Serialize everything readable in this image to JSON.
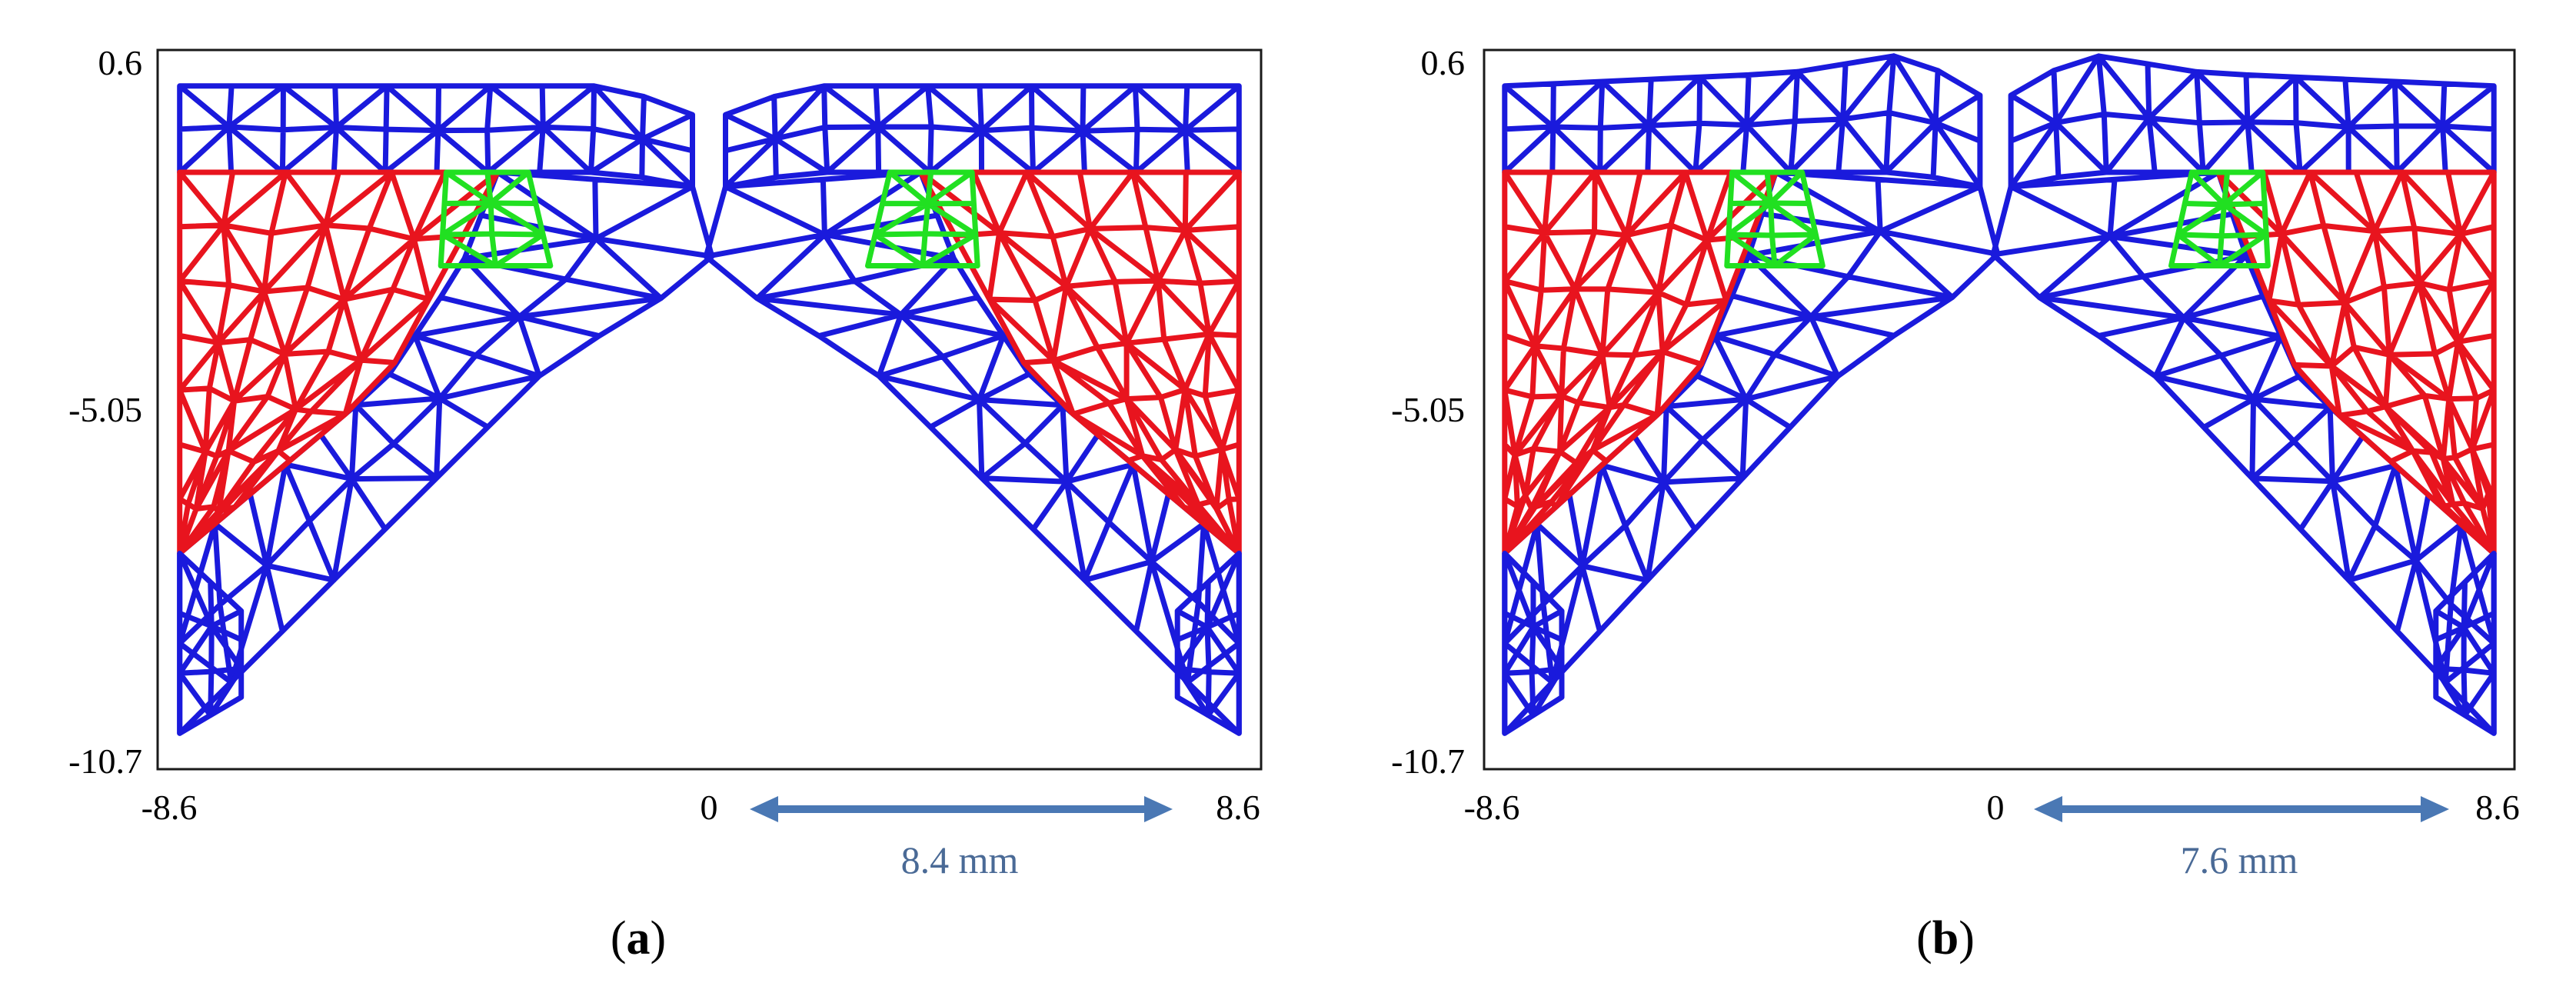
{
  "panels": [
    {
      "label_letter": "a",
      "label_open": "(",
      "label_close": ")",
      "y_ticks": [
        "0.6",
        "-5.05",
        "-10.7"
      ],
      "x_ticks": [
        "-8.6",
        "0",
        "8.6"
      ],
      "dimension_label": "8.4 mm",
      "spread": 1.0,
      "lift": 0.0
    },
    {
      "label_letter": "b",
      "label_open": "(",
      "label_close": ")",
      "y_ticks": [
        "0.6",
        "-5.05",
        "-10.7"
      ],
      "x_ticks": [
        "-8.6",
        "0",
        "8.6"
      ],
      "dimension_label": "7.6 mm",
      "spread": 0.92,
      "lift": 1.0
    }
  ],
  "colors": {
    "blue_mesh": "#1a1adc",
    "red_mesh": "#e8141e",
    "green_mesh": "#21e021",
    "dimension_arrow": "#4a78b4",
    "dimension_text": "#4a6a96"
  }
}
